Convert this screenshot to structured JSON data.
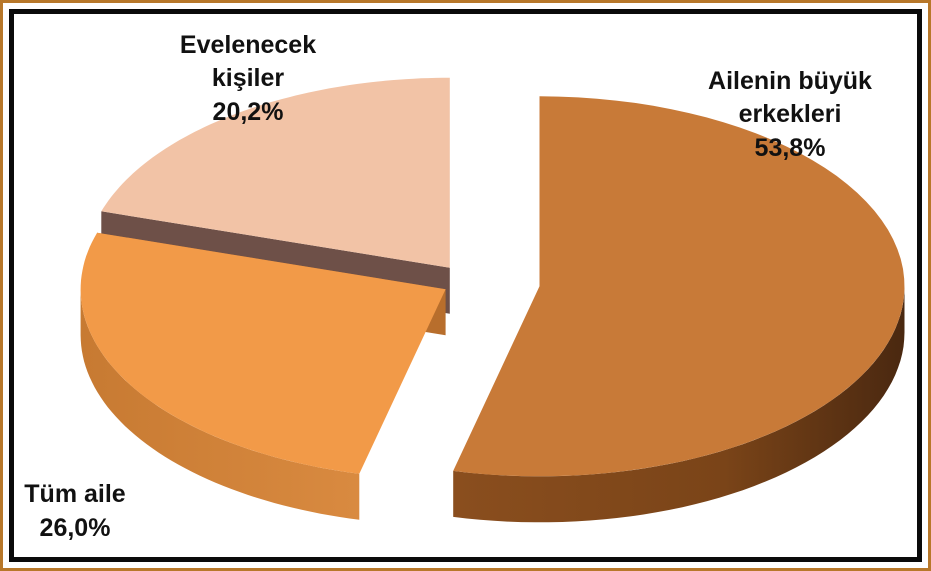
{
  "chart_data": {
    "type": "pie",
    "three_d": true,
    "exploded": true,
    "slices": [
      {
        "label_lines": [
          "Ailenin büyük",
          "erkekleri"
        ],
        "value_label": "53,8%",
        "value": 53.8,
        "color_top": "#c87a38",
        "color_side": "#7a4418"
      },
      {
        "label_lines": [
          "Tüm aile"
        ],
        "value_label": "26,0%",
        "value": 26.0,
        "color_top": "#f29a48",
        "color_side": "#b86e2c"
      },
      {
        "label_lines": [
          "Evelenecek",
          "kişiler"
        ],
        "value_label": "20,2%",
        "value": 20.2,
        "color_top": "#f2c3a6",
        "color_side": "#6e5048"
      }
    ]
  }
}
